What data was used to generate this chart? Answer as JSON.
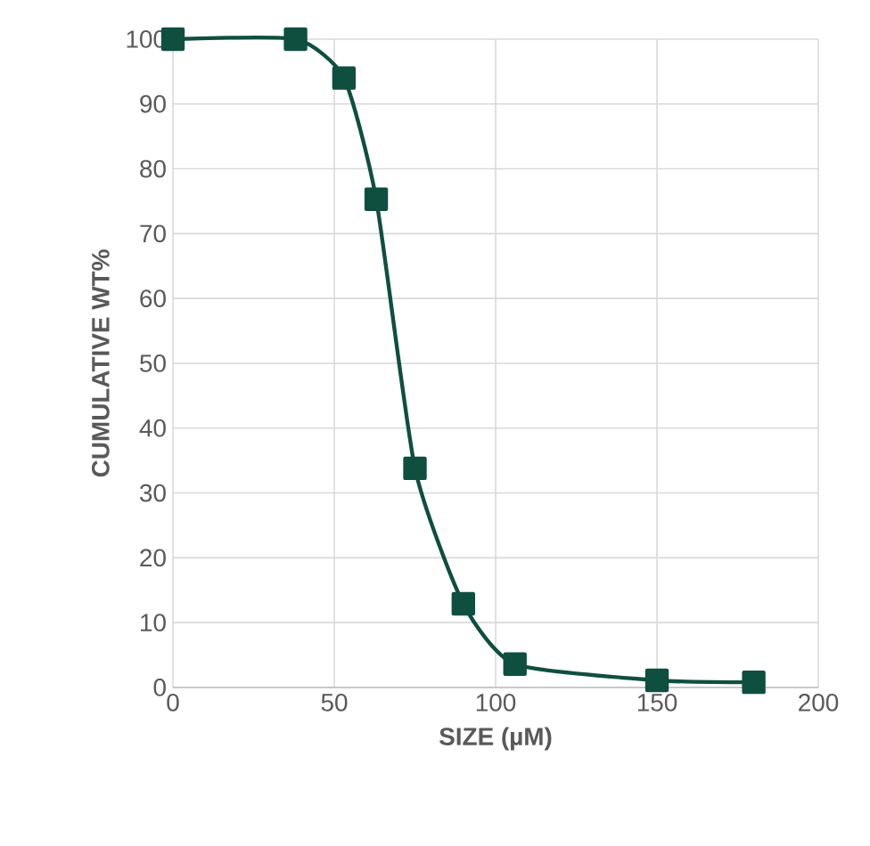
{
  "chart_data": {
    "type": "line",
    "xlabel": "SIZE (µM)",
    "ylabel": "CUMULATIVE WT%",
    "x": [
      0,
      38,
      53,
      63,
      75,
      90,
      106,
      150,
      180
    ],
    "series": [
      {
        "color": "#0f4f3f",
        "values": [
          100,
          100,
          94,
          75.3,
          33.8,
          12.9,
          3.6,
          1.1,
          0.8
        ]
      }
    ],
    "xlim": [
      0,
      200
    ],
    "xticks": [
      0,
      50,
      100,
      150,
      200
    ],
    "ylim": [
      0,
      100
    ],
    "yticks": [
      0,
      10,
      20,
      30,
      40,
      50,
      60,
      70,
      80,
      90,
      100
    ],
    "grid": true,
    "marker": "square",
    "line_style": "solid"
  }
}
